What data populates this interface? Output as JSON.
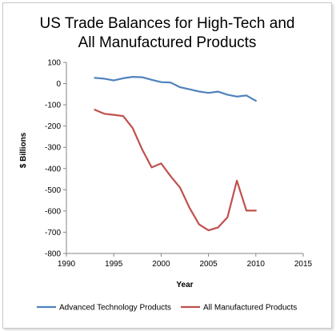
{
  "chart_data": {
    "type": "line",
    "title_lines": [
      "US Trade Balances for High-Tech and",
      "All Manufactured Products"
    ],
    "xlabel": "Year",
    "ylabel": "$ Billions",
    "xlim": [
      1990,
      2015
    ],
    "ylim": [
      -800,
      100
    ],
    "x_ticks": [
      1990,
      1995,
      2000,
      2005,
      2010,
      2015
    ],
    "y_ticks": [
      100,
      0,
      -100,
      -200,
      -300,
      -400,
      -500,
      -600,
      -700,
      -800
    ],
    "grid": false,
    "legend_position": "bottom",
    "series": [
      {
        "name": "Advanced Technology Products",
        "color": "#4f81bd",
        "x": [
          1993,
          1994,
          1995,
          1996,
          1997,
          1998,
          1999,
          2000,
          2001,
          2002,
          2003,
          2004,
          2005,
          2006,
          2007,
          2008,
          2009,
          2010
        ],
        "y": [
          27,
          23,
          15,
          25,
          32,
          30,
          18,
          7,
          5,
          -17,
          -27,
          -37,
          -44,
          -38,
          -52,
          -61,
          -56,
          -81
        ]
      },
      {
        "name": "All Manufactured Products",
        "color": "#c0504d",
        "x": [
          1993,
          1994,
          1995,
          1996,
          1997,
          1998,
          1999,
          2000,
          2001,
          2002,
          2003,
          2004,
          2005,
          2006,
          2007,
          2008,
          2009,
          2010
        ],
        "y": [
          -123,
          -142,
          -147,
          -153,
          -210,
          -310,
          -395,
          -376,
          -436,
          -490,
          -585,
          -663,
          -691,
          -678,
          -630,
          -457,
          -598,
          -598
        ]
      }
    ]
  }
}
